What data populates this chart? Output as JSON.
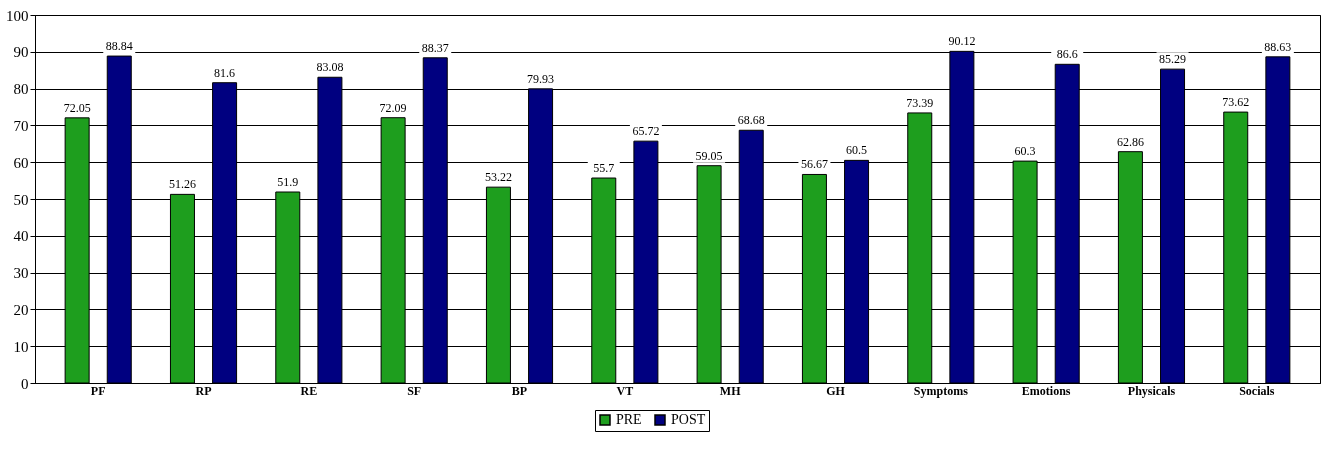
{
  "chart_data": {
    "type": "bar",
    "categories": [
      "PF",
      "RP",
      "RE",
      "SF",
      "BP",
      "VT",
      "MH",
      "GH",
      "Symptoms",
      "Emotions",
      "Physicals",
      "Socials"
    ],
    "series": [
      {
        "name": "PRE",
        "color": "#1e9e1e",
        "values": [
          72.05,
          51.26,
          51.9,
          72.09,
          53.22,
          55.7,
          59.05,
          56.67,
          73.39,
          60.3,
          62.86,
          73.62
        ]
      },
      {
        "name": "POST",
        "color": "#000080",
        "values": [
          88.84,
          81.6,
          83.08,
          88.37,
          79.93,
          65.72,
          68.68,
          60.5,
          90.12,
          86.6,
          85.29,
          88.63
        ]
      }
    ],
    "ylim": [
      0,
      100
    ],
    "yticks": [
      0,
      10,
      20,
      30,
      40,
      50,
      60,
      70,
      80,
      90,
      100
    ],
    "grid": "y",
    "legend": "bottom",
    "data_labels": true
  }
}
